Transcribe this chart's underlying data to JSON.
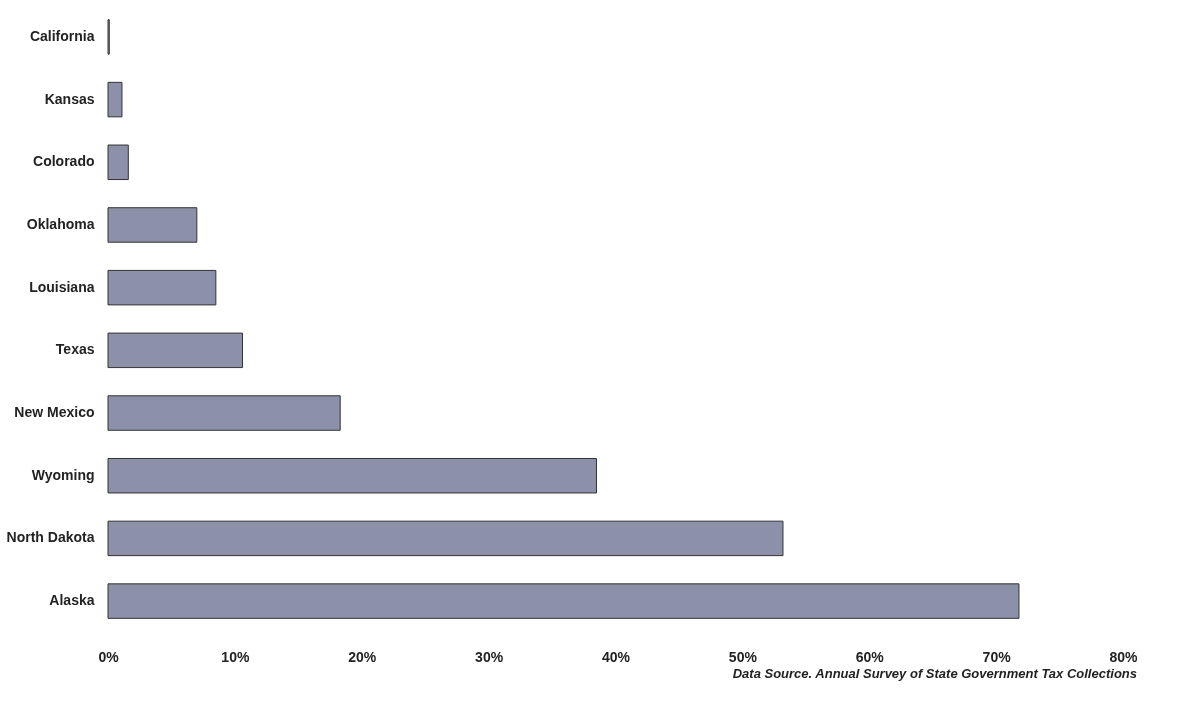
{
  "chart_data": {
    "type": "bar",
    "orientation": "horizontal",
    "categories": [
      "California",
      "Kansas",
      "Colorado",
      "Oklahoma",
      "Louisiana",
      "Texas",
      "New Mexico",
      "Wyoming",
      "North Dakota",
      "Alaska"
    ],
    "values": [
      0.1,
      1.1,
      1.6,
      7.0,
      8.5,
      10.6,
      18.3,
      38.5,
      53.2,
      71.8
    ],
    "color": "#8c90a8",
    "xlim": [
      0,
      80
    ],
    "xticks": [
      {
        "value": 0,
        "label": "0%"
      },
      {
        "value": 10,
        "label": "10%"
      },
      {
        "value": 20,
        "label": "20%"
      },
      {
        "value": 30,
        "label": "30%"
      },
      {
        "value": 40,
        "label": "40%"
      },
      {
        "value": 50,
        "label": "50%"
      },
      {
        "value": 60,
        "label": "60%"
      },
      {
        "value": 70,
        "label": "70%"
      },
      {
        "value": 80,
        "label": "80%"
      }
    ],
    "annotations": [
      "Data Source. Annual Survey of State Government Tax Collections"
    ]
  }
}
